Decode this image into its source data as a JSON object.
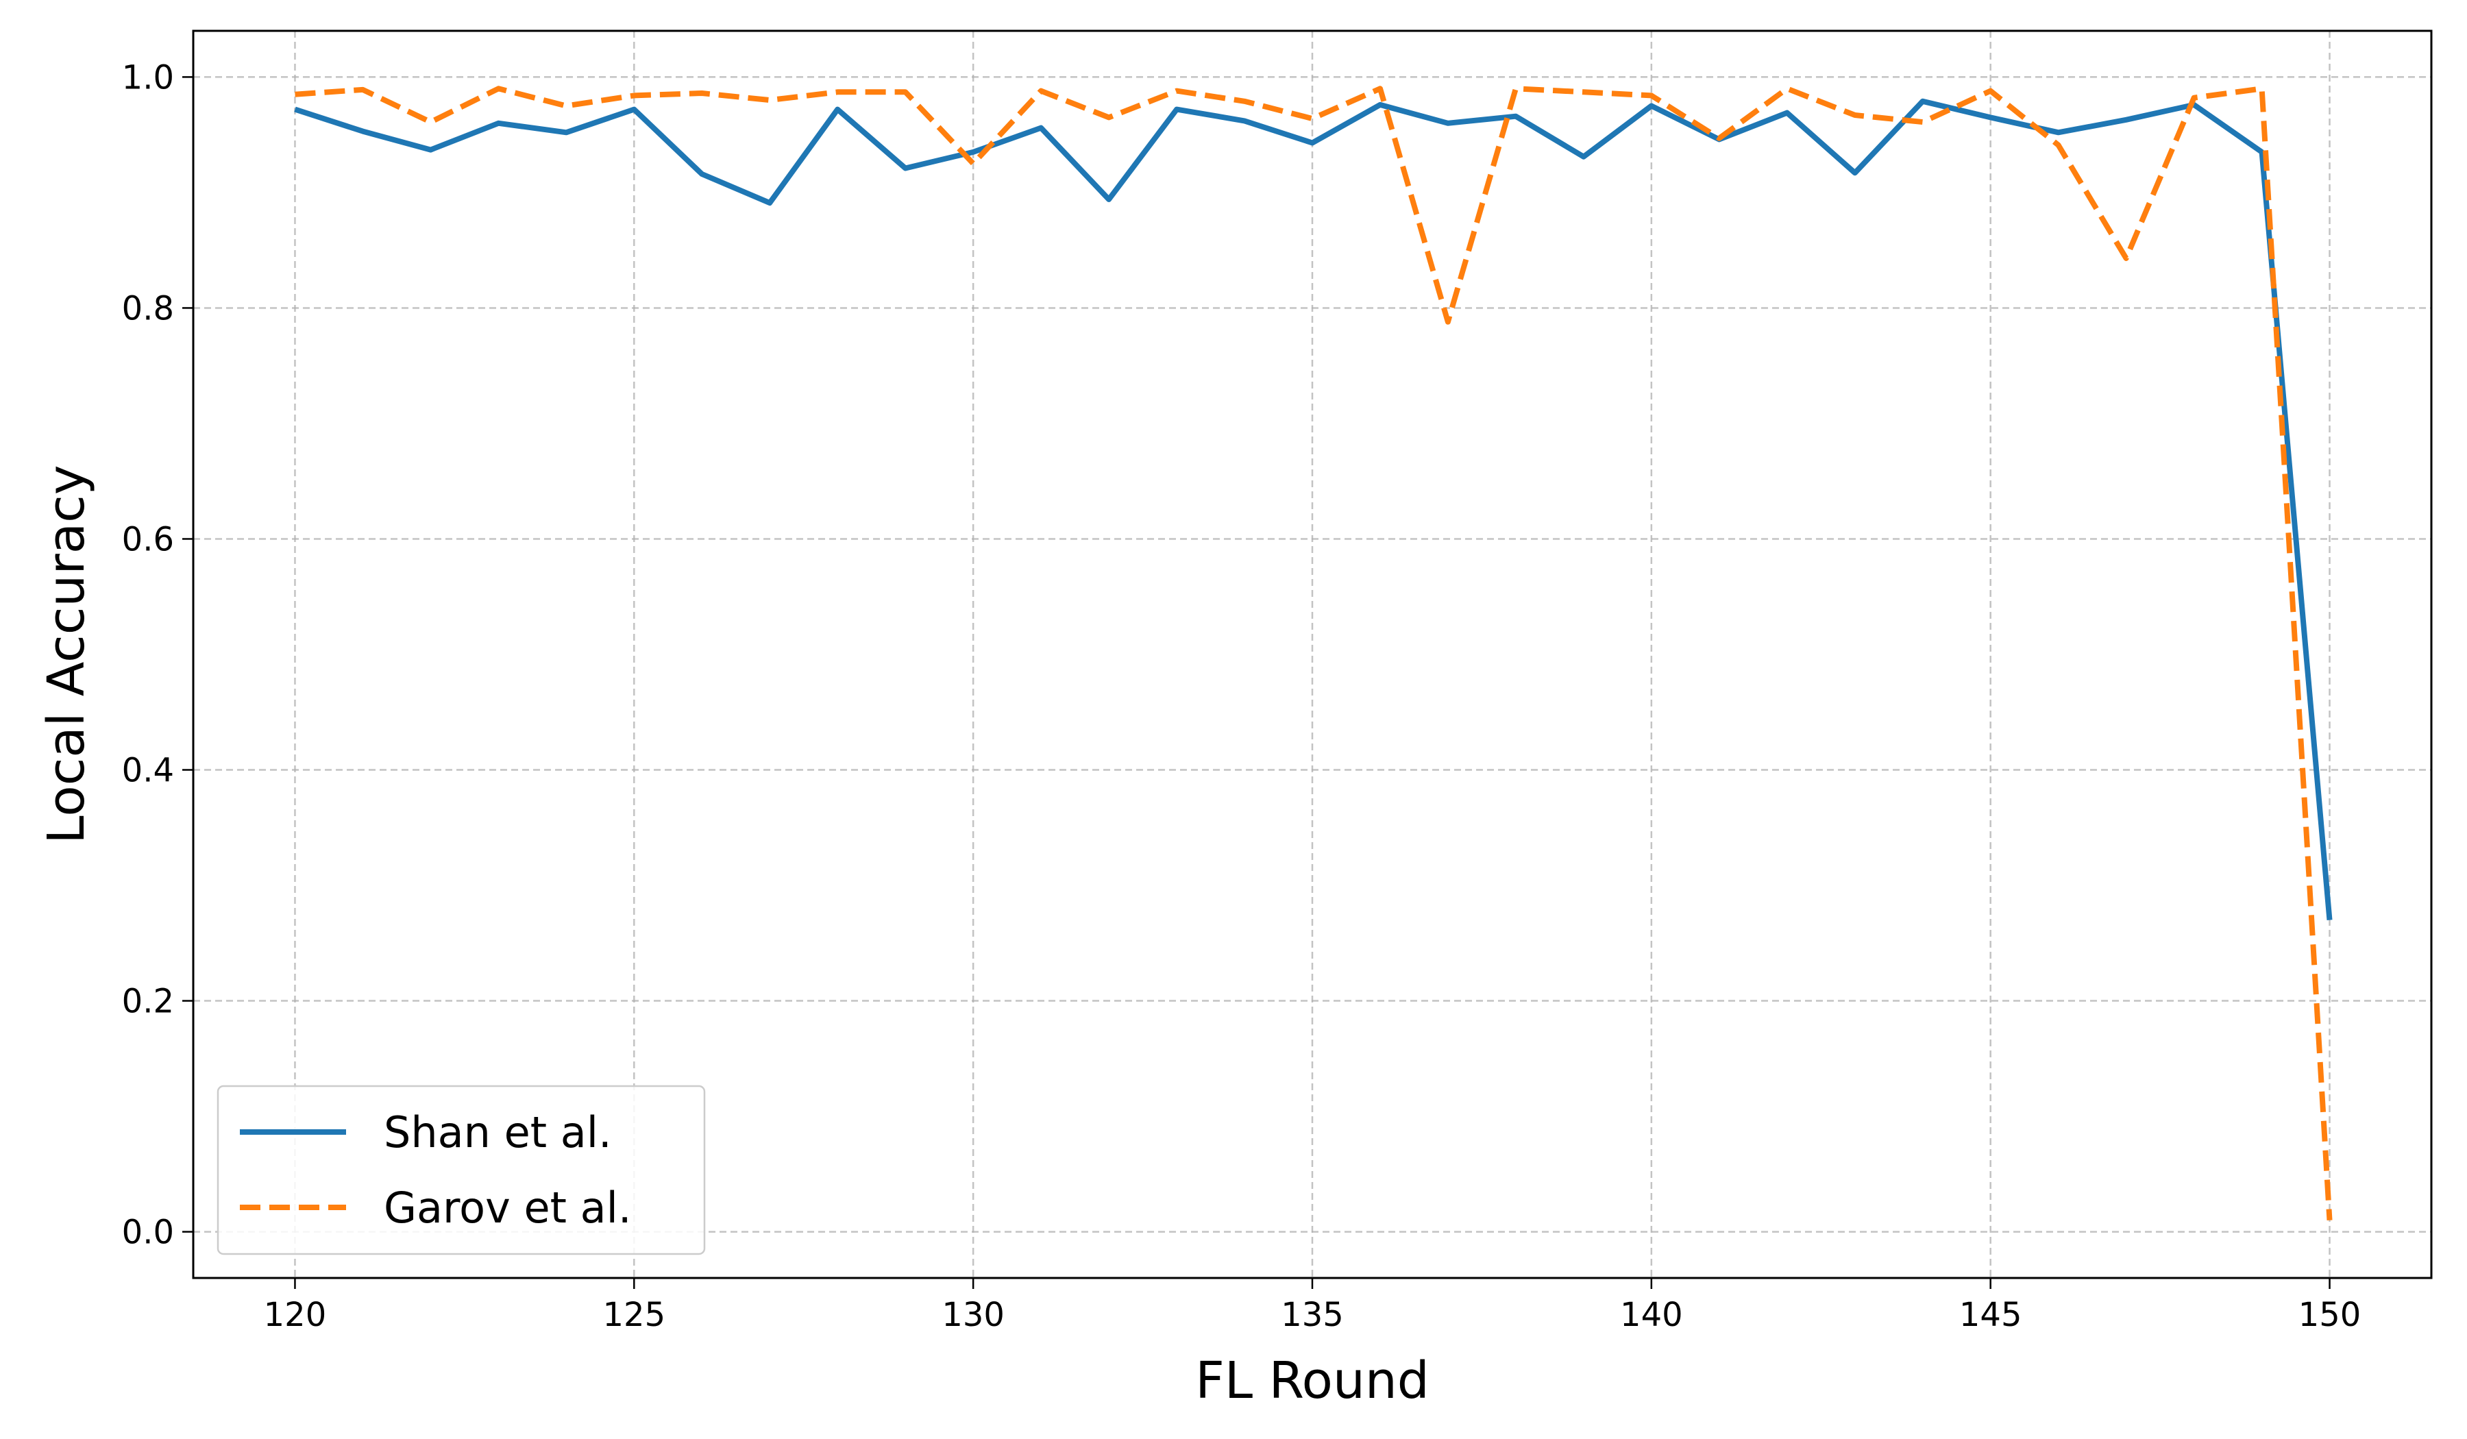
{
  "chart_data": {
    "type": "line",
    "title": "",
    "xlabel": "FL Round",
    "ylabel": "Local Accuracy",
    "xlim": [
      118.5,
      151.5
    ],
    "ylim": [
      -0.04,
      1.04
    ],
    "xticks": [
      120,
      125,
      130,
      135,
      140,
      145,
      150
    ],
    "yticks": [
      0.0,
      0.2,
      0.4,
      0.6,
      0.8,
      1.0
    ],
    "xtick_labels": [
      "120",
      "125",
      "130",
      "135",
      "140",
      "145",
      "150"
    ],
    "ytick_labels": [
      "0.0",
      "0.2",
      "0.4",
      "0.6",
      "0.8",
      "1.0"
    ],
    "grid": true,
    "legend_position": "lower-left",
    "x": [
      120,
      121,
      122,
      123,
      124,
      125,
      126,
      127,
      128,
      129,
      130,
      131,
      132,
      133,
      134,
      135,
      136,
      137,
      138,
      139,
      140,
      141,
      142,
      143,
      144,
      145,
      146,
      147,
      148,
      149,
      150
    ],
    "series": [
      {
        "name": "Shan et al.",
        "color": "#1f77b4",
        "style": "solid",
        "values": [
          0.972,
          0.953,
          0.937,
          0.96,
          0.952,
          0.972,
          0.916,
          0.891,
          0.972,
          0.921,
          0.935,
          0.956,
          0.894,
          0.972,
          0.962,
          0.943,
          0.976,
          0.96,
          0.966,
          0.931,
          0.975,
          0.946,
          0.969,
          0.917,
          0.979,
          0.965,
          0.952,
          0.963,
          0.976,
          0.935,
          0.27
        ]
      },
      {
        "name": "Garov et al.",
        "color": "#ff7f0e",
        "style": "dashed",
        "values": [
          0.985,
          0.989,
          0.961,
          0.99,
          0.975,
          0.984,
          0.986,
          0.98,
          0.987,
          0.987,
          0.925,
          0.988,
          0.965,
          0.988,
          0.979,
          0.964,
          0.99,
          0.788,
          0.99,
          0.987,
          0.984,
          0.947,
          0.99,
          0.967,
          0.961,
          0.988,
          0.941,
          0.843,
          0.982,
          0.99,
          0.01
        ]
      }
    ]
  }
}
